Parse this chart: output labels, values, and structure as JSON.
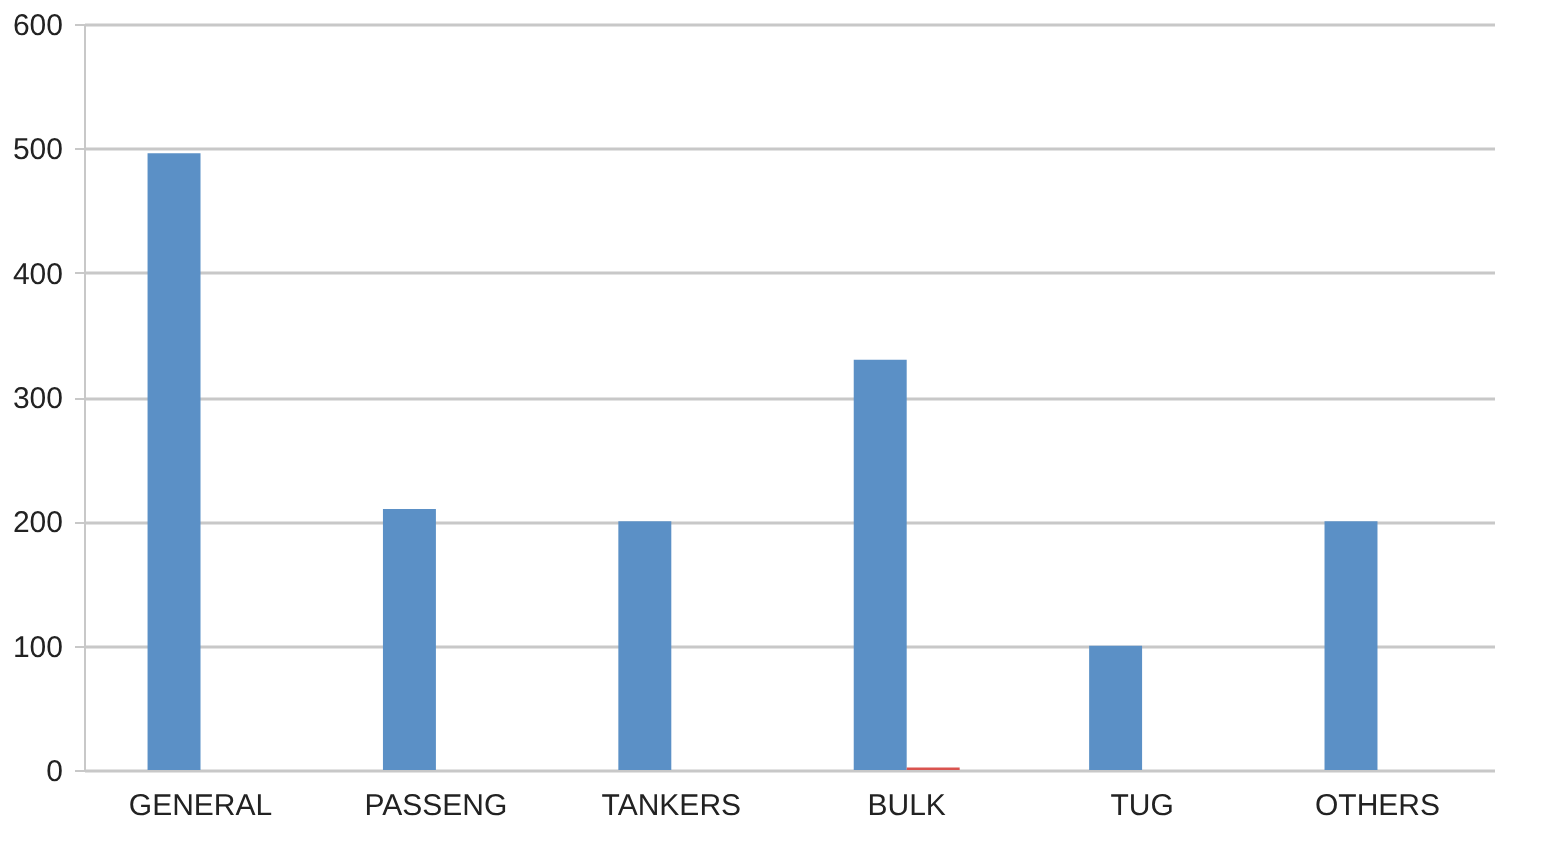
{
  "chart_data": {
    "type": "bar",
    "categories": [
      "GENERAL",
      "PASSENG",
      "TANKERS",
      "BULK",
      "TUG",
      "OTHERS"
    ],
    "series": [
      {
        "color": "#5b90c6",
        "values": [
          496,
          210,
          200,
          330,
          100,
          200
        ]
      },
      {
        "color": "#d9534f",
        "values": [
          0,
          0,
          0,
          2,
          0,
          0
        ]
      }
    ],
    "ylim": [
      0,
      600
    ],
    "yticks": [
      0,
      100,
      200,
      300,
      400,
      500,
      600
    ],
    "grid": "y",
    "legend": false
  }
}
